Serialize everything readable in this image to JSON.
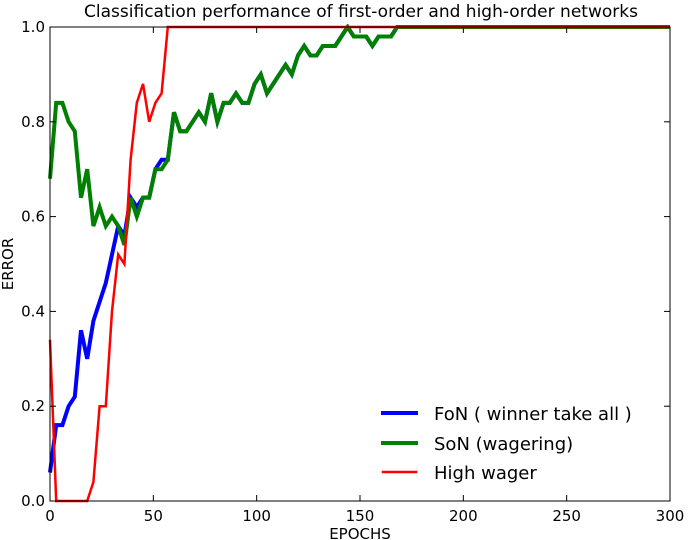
{
  "chart_data": {
    "type": "line",
    "title": "Classification performance of first-order and high-order networks",
    "xlabel": "EPOCHS",
    "ylabel": "ERROR",
    "xlim": [
      0,
      300
    ],
    "ylim": [
      0,
      1.0
    ],
    "xticks": [
      0,
      50,
      100,
      150,
      200,
      250,
      300
    ],
    "yticks": [
      0.0,
      0.2,
      0.4,
      0.6,
      0.8,
      1.0
    ],
    "xtick_labels": [
      "0",
      "50",
      "100",
      "150",
      "200",
      "250",
      "300"
    ],
    "ytick_labels": [
      "0.0",
      "0.2",
      "0.4",
      "0.6",
      "0.8",
      "1.0"
    ],
    "grid": false,
    "legend_position": "bottom-right",
    "series": [
      {
        "name": "FoN ( winner take all )",
        "color": "#0000ff",
        "width": 4,
        "points": [
          [
            0,
            0.06
          ],
          [
            3,
            0.16
          ],
          [
            6,
            0.16
          ],
          [
            9,
            0.2
          ],
          [
            12,
            0.22
          ],
          [
            15,
            0.36
          ],
          [
            18,
            0.3
          ],
          [
            21,
            0.38
          ],
          [
            24,
            0.42
          ],
          [
            27,
            0.46
          ],
          [
            30,
            0.52
          ],
          [
            33,
            0.58
          ],
          [
            36,
            0.56
          ],
          [
            39,
            0.64
          ],
          [
            42,
            0.62
          ],
          [
            45,
            0.64
          ],
          [
            48,
            0.64
          ],
          [
            51,
            0.7
          ],
          [
            54,
            0.72
          ],
          [
            57,
            0.72
          ],
          [
            60,
            0.82
          ],
          [
            63,
            0.78
          ],
          [
            66,
            0.78
          ],
          [
            69,
            0.8
          ],
          [
            72,
            0.82
          ],
          [
            75,
            0.8
          ],
          [
            78,
            0.86
          ],
          [
            81,
            0.8
          ],
          [
            84,
            0.84
          ],
          [
            87,
            0.84
          ],
          [
            90,
            0.86
          ],
          [
            93,
            0.84
          ],
          [
            96,
            0.84
          ],
          [
            99,
            0.88
          ],
          [
            102,
            0.9
          ],
          [
            105,
            0.86
          ],
          [
            108,
            0.88
          ],
          [
            111,
            0.9
          ],
          [
            114,
            0.92
          ],
          [
            117,
            0.9
          ],
          [
            120,
            0.94
          ],
          [
            123,
            0.96
          ],
          [
            126,
            0.94
          ],
          [
            129,
            0.94
          ],
          [
            132,
            0.96
          ],
          [
            135,
            0.96
          ],
          [
            138,
            0.96
          ],
          [
            141,
            0.98
          ],
          [
            144,
            1.0
          ],
          [
            147,
            0.98
          ],
          [
            150,
            0.98
          ],
          [
            153,
            0.98
          ],
          [
            156,
            0.96
          ],
          [
            159,
            0.98
          ],
          [
            162,
            0.98
          ],
          [
            165,
            0.98
          ],
          [
            168,
            1.0
          ],
          [
            300,
            1.0
          ]
        ]
      },
      {
        "name": "SoN (wagering)",
        "color": "#008000",
        "width": 4,
        "points": [
          [
            0,
            0.68
          ],
          [
            3,
            0.84
          ],
          [
            6,
            0.84
          ],
          [
            9,
            0.8
          ],
          [
            12,
            0.78
          ],
          [
            15,
            0.64
          ],
          [
            18,
            0.7
          ],
          [
            21,
            0.58
          ],
          [
            24,
            0.62
          ],
          [
            27,
            0.58
          ],
          [
            30,
            0.6
          ],
          [
            33,
            0.58
          ],
          [
            36,
            0.54
          ],
          [
            39,
            0.64
          ],
          [
            42,
            0.6
          ],
          [
            45,
            0.64
          ],
          [
            48,
            0.64
          ],
          [
            51,
            0.7
          ],
          [
            54,
            0.7
          ],
          [
            57,
            0.72
          ],
          [
            60,
            0.82
          ],
          [
            63,
            0.78
          ],
          [
            66,
            0.78
          ],
          [
            69,
            0.8
          ],
          [
            72,
            0.82
          ],
          [
            75,
            0.8
          ],
          [
            78,
            0.86
          ],
          [
            81,
            0.8
          ],
          [
            84,
            0.84
          ],
          [
            87,
            0.84
          ],
          [
            90,
            0.86
          ],
          [
            93,
            0.84
          ],
          [
            96,
            0.84
          ],
          [
            99,
            0.88
          ],
          [
            102,
            0.9
          ],
          [
            105,
            0.86
          ],
          [
            108,
            0.88
          ],
          [
            111,
            0.9
          ],
          [
            114,
            0.92
          ],
          [
            117,
            0.9
          ],
          [
            120,
            0.94
          ],
          [
            123,
            0.96
          ],
          [
            126,
            0.94
          ],
          [
            129,
            0.94
          ],
          [
            132,
            0.96
          ],
          [
            135,
            0.96
          ],
          [
            138,
            0.96
          ],
          [
            141,
            0.98
          ],
          [
            144,
            1.0
          ],
          [
            147,
            0.98
          ],
          [
            150,
            0.98
          ],
          [
            153,
            0.98
          ],
          [
            156,
            0.96
          ],
          [
            159,
            0.98
          ],
          [
            162,
            0.98
          ],
          [
            165,
            0.98
          ],
          [
            168,
            1.0
          ],
          [
            300,
            1.0
          ]
        ]
      },
      {
        "name": "High wager",
        "color": "#ff0000",
        "width": 2.5,
        "points": [
          [
            0,
            0.34
          ],
          [
            3,
            0.0
          ],
          [
            6,
            0.0
          ],
          [
            9,
            0.0
          ],
          [
            12,
            0.0
          ],
          [
            15,
            0.0
          ],
          [
            18,
            0.0
          ],
          [
            21,
            0.04
          ],
          [
            24,
            0.2
          ],
          [
            27,
            0.2
          ],
          [
            30,
            0.4
          ],
          [
            33,
            0.52
          ],
          [
            36,
            0.5
          ],
          [
            39,
            0.72
          ],
          [
            42,
            0.84
          ],
          [
            45,
            0.88
          ],
          [
            48,
            0.8
          ],
          [
            51,
            0.84
          ],
          [
            54,
            0.86
          ],
          [
            57,
            1.0
          ],
          [
            300,
            1.0
          ]
        ]
      }
    ]
  }
}
